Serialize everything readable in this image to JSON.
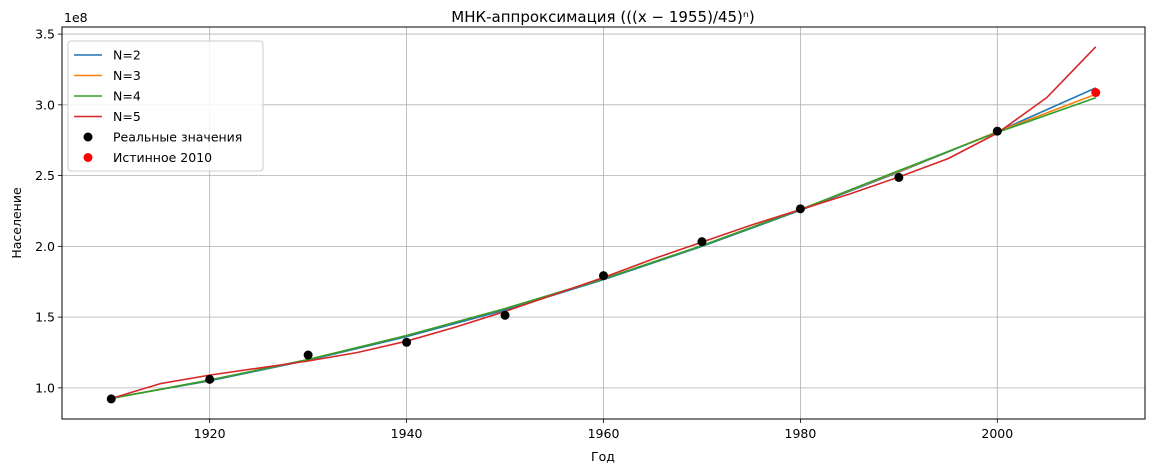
{
  "chart_data": {
    "type": "line",
    "title": "МНК-аппроксимация (((x − 1955)/45)ⁿ)",
    "xlabel": "Год",
    "ylabel": "Население",
    "y_offset_label": "1e8",
    "xlim": [
      1905,
      2015
    ],
    "ylim": [
      78000000,
      355000000
    ],
    "x_ticks": [
      1920,
      1940,
      1960,
      1980,
      2000
    ],
    "x_tick_labels": [
      "1920",
      "1940",
      "1960",
      "1980",
      "2000"
    ],
    "y_ticks": [
      100000000,
      150000000,
      200000000,
      250000000,
      300000000,
      350000000
    ],
    "y_tick_labels": [
      "1.0",
      "1.5",
      "2.0",
      "2.5",
      "3.0",
      "3.5"
    ],
    "grid": true,
    "legend_position": "top-left",
    "series": [
      {
        "name": "N=2",
        "color": "#1f77b4",
        "x": [
          1910,
          1920,
          1930,
          1940,
          1950,
          1960,
          1970,
          1980,
          1990,
          2000,
          2010
        ],
        "y": [
          92800000,
          105000000,
          119500000,
          136200000,
          155000000,
          176500000,
          200000000,
          225500000,
          252500000,
          281000000,
          312000000
        ]
      },
      {
        "name": "N=3",
        "color": "#ff7f0e",
        "x": [
          1910,
          1920,
          1930,
          1940,
          1950,
          1960,
          1970,
          1980,
          1990,
          2000,
          2010
        ],
        "y": [
          92600000,
          105500000,
          120000000,
          137000000,
          156000000,
          177000000,
          200500000,
          226000000,
          253000000,
          281000000,
          307500000
        ]
      },
      {
        "name": "N=4",
        "color": "#2ca02c",
        "x": [
          1910,
          1920,
          1930,
          1940,
          1950,
          1960,
          1970,
          1980,
          1990,
          2000,
          2010
        ],
        "y": [
          92500000,
          105500000,
          120000000,
          137000000,
          156000000,
          177000000,
          200500000,
          226000000,
          253500000,
          280500000,
          305000000
        ]
      },
      {
        "name": "N=5",
        "color": "#d62728",
        "x": [
          1910,
          1915,
          1920,
          1925,
          1930,
          1935,
          1940,
          1945,
          1950,
          1955,
          1960,
          1965,
          1970,
          1975,
          1980,
          1985,
          1990,
          1995,
          2000,
          2005,
          2010
        ],
        "y": [
          92500000,
          103000000,
          109000000,
          114000000,
          119000000,
          125000000,
          133000000,
          143000000,
          154000000,
          166000000,
          178000000,
          191000000,
          203000000,
          215000000,
          226000000,
          237000000,
          249000000,
          262000000,
          280000000,
          305000000,
          341000000
        ]
      }
    ],
    "points": [
      {
        "name": "Реальные значения",
        "color": "#000000",
        "x": [
          1910,
          1920,
          1930,
          1940,
          1950,
          1960,
          1970,
          1980,
          1990,
          2000
        ],
        "y": [
          92200000,
          106000000,
          123200000,
          132200000,
          151300000,
          179300000,
          203300000,
          226500000,
          248700000,
          281400000
        ]
      },
      {
        "name": "Истинное 2010",
        "color": "#ff0000",
        "x": [
          2010
        ],
        "y": [
          308700000
        ]
      }
    ]
  }
}
